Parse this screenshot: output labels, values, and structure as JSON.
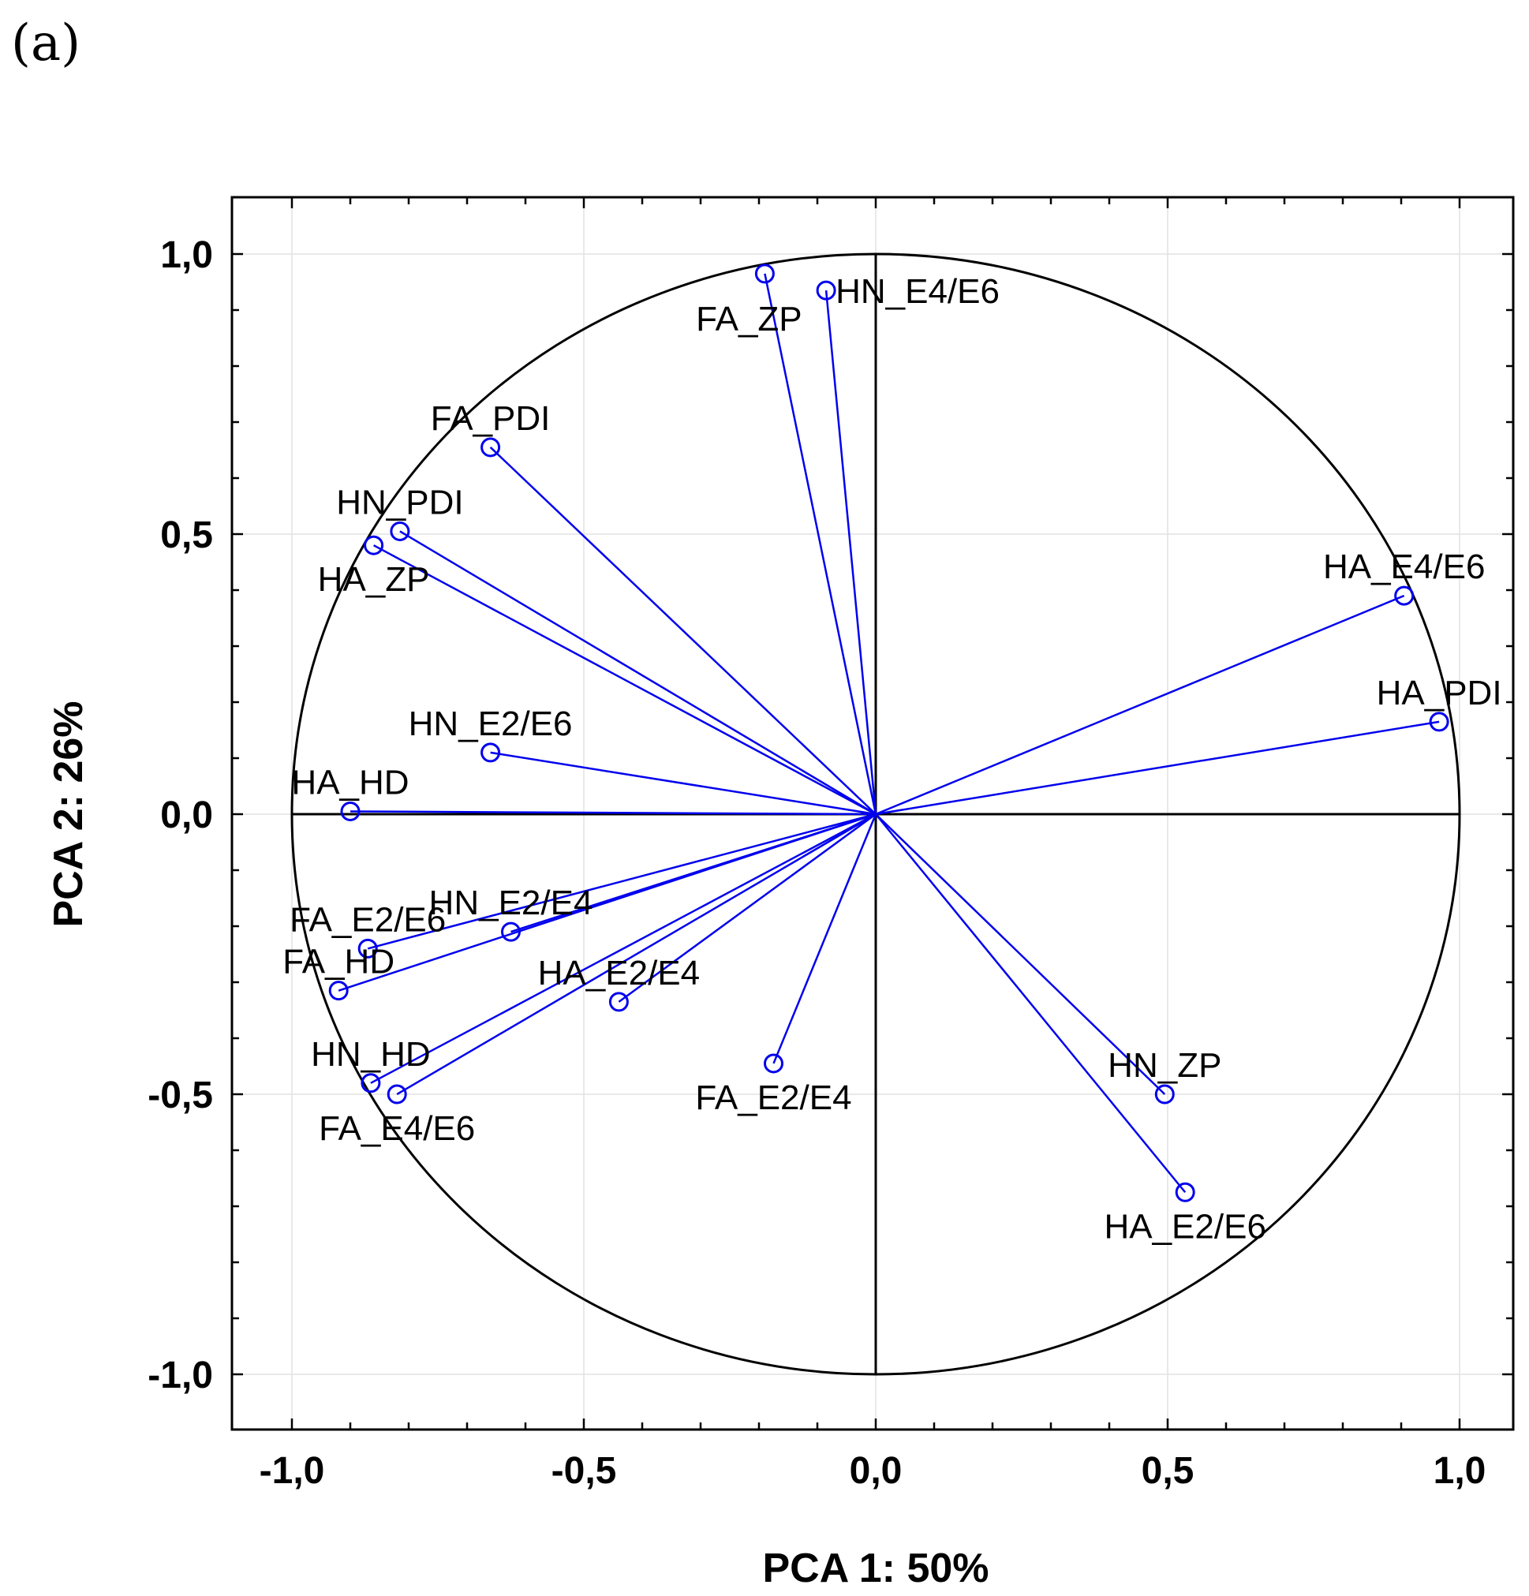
{
  "panel_label": "(a)",
  "chart_data": {
    "type": "scatter",
    "subtype": "pca-correlation-circle",
    "xlabel": "PCA 1: 50%",
    "ylabel": "PCA 2: 26%",
    "xlim": [
      -1.1,
      1.1
    ],
    "ylim": [
      -1.1,
      1.1
    ],
    "xticks": [
      -1.0,
      -0.5,
      0.0,
      0.5,
      1.0
    ],
    "yticks": [
      -1.0,
      -0.5,
      0.0,
      0.5,
      1.0
    ],
    "xtick_labels": [
      "-1,0",
      "-0,5",
      "0,0",
      "0,5",
      "1,0"
    ],
    "ytick_labels": [
      "-1,0",
      "-0,5",
      "0,0",
      "0,5",
      "1,0"
    ],
    "grid": true,
    "unit_circle": true,
    "series_color": "#0000ee",
    "points": [
      {
        "name": "FA_ZP",
        "x": -0.19,
        "y": 0.965,
        "label_pos": "below-left"
      },
      {
        "name": "HN_E4/E6",
        "x": -0.085,
        "y": 0.935,
        "label_pos": "right"
      },
      {
        "name": "FA_PDI",
        "x": -0.66,
        "y": 0.655,
        "label_pos": "above"
      },
      {
        "name": "HN_PDI",
        "x": -0.815,
        "y": 0.505,
        "label_pos": "above"
      },
      {
        "name": "HA_ZP",
        "x": -0.86,
        "y": 0.48,
        "label_pos": "below"
      },
      {
        "name": "HA_E4/E6",
        "x": 0.905,
        "y": 0.39,
        "label_pos": "above"
      },
      {
        "name": "HA_PDI",
        "x": 0.965,
        "y": 0.165,
        "label_pos": "above"
      },
      {
        "name": "HN_E2/E6",
        "x": -0.66,
        "y": 0.11,
        "label_pos": "above"
      },
      {
        "name": "HA_HD",
        "x": -0.9,
        "y": 0.005,
        "label_pos": "above"
      },
      {
        "name": "HN_E2/E4",
        "x": -0.625,
        "y": -0.21,
        "label_pos": "above"
      },
      {
        "name": "FA_E2/E6",
        "x": -0.87,
        "y": -0.24,
        "label_pos": "above"
      },
      {
        "name": "FA_HD",
        "x": -0.92,
        "y": -0.315,
        "label_pos": "above"
      },
      {
        "name": "HA_E2/E4",
        "x": -0.44,
        "y": -0.335,
        "label_pos": "above"
      },
      {
        "name": "FA_E2/E4",
        "x": -0.175,
        "y": -0.445,
        "label_pos": "below"
      },
      {
        "name": "HN_HD",
        "x": -0.865,
        "y": -0.48,
        "label_pos": "above"
      },
      {
        "name": "FA_E4/E6",
        "x": -0.82,
        "y": -0.5,
        "label_pos": "below"
      },
      {
        "name": "HN_ZP",
        "x": 0.495,
        "y": -0.5,
        "label_pos": "above"
      },
      {
        "name": "HA_E2/E6",
        "x": 0.53,
        "y": -0.675,
        "label_pos": "below"
      }
    ]
  }
}
